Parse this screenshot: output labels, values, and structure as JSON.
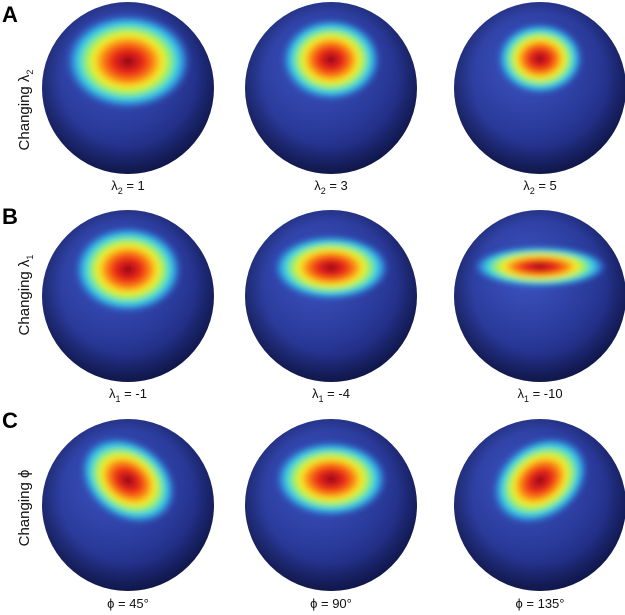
{
  "rows": [
    {
      "letter": "A",
      "label_main": "Changing λ",
      "label_sub": "2",
      "spheres": [
        {
          "sym": "λ",
          "sub": "2",
          "rest": " = 1",
          "blob": {
            "dx": 0.0,
            "dy": -0.56,
            "rx": 0.58,
            "ry": 0.44,
            "rot": 0,
            "k": 1.0
          }
        },
        {
          "sym": "λ",
          "sub": "2",
          "rest": " = 3",
          "blob": {
            "dx": 0.0,
            "dy": -0.6,
            "rx": 0.46,
            "ry": 0.38,
            "rot": 0,
            "k": 0.85
          }
        },
        {
          "sym": "λ",
          "sub": "2",
          "rest": " = 5",
          "blob": {
            "dx": 0.0,
            "dy": -0.62,
            "rx": 0.4,
            "ry": 0.33,
            "rot": 0,
            "k": 0.75
          }
        }
      ]
    },
    {
      "letter": "B",
      "label_main": "Changing λ",
      "label_sub": "1",
      "spheres": [
        {
          "sym": "λ",
          "sub": "1",
          "rest": " = -1",
          "blob": {
            "dx": 0.0,
            "dy": -0.56,
            "rx": 0.5,
            "ry": 0.4,
            "rot": 0,
            "k": 0.9
          }
        },
        {
          "sym": "λ",
          "sub": "1",
          "rest": " = -4",
          "blob": {
            "dx": 0.0,
            "dy": -0.6,
            "rx": 0.54,
            "ry": 0.3,
            "rot": 0,
            "k": 0.85
          }
        },
        {
          "sym": "λ",
          "sub": "1",
          "rest": " = -10",
          "blob": {
            "dx": 0.0,
            "dy": -0.62,
            "rx": 0.62,
            "ry": 0.19,
            "rot": 0,
            "k": 0.8
          }
        }
      ]
    },
    {
      "letter": "C",
      "label_main": "Changing ϕ",
      "label_sub": "",
      "spheres": [
        {
          "sym": "ϕ",
          "sub": "",
          "rest": " = 45°",
          "blob": {
            "dx": 0.0,
            "dy": -0.52,
            "rx": 0.48,
            "ry": 0.36,
            "rot": 35,
            "k": 0.9
          }
        },
        {
          "sym": "ϕ",
          "sub": "",
          "rest": " = 90°",
          "blob": {
            "dx": 0.0,
            "dy": -0.55,
            "rx": 0.52,
            "ry": 0.35,
            "rot": 0,
            "k": 0.9
          }
        },
        {
          "sym": "ϕ",
          "sub": "",
          "rest": " = 135°",
          "blob": {
            "dx": 0.0,
            "dy": -0.52,
            "rx": 0.48,
            "ry": 0.36,
            "rot": -35,
            "k": 0.9
          }
        }
      ]
    }
  ],
  "colors": {
    "sphere_base": "#2a3a9a",
    "sphere_light": "#3d55c4",
    "sphere_dark": "#141c64",
    "stops": [
      "#7a0c14",
      "#c4131c",
      "#ee2f17",
      "#fb8c15",
      "#f7ee29",
      "#9ef05a",
      "#3fd7e6",
      "#2f7fd6",
      "#2f4cb8"
    ]
  }
}
